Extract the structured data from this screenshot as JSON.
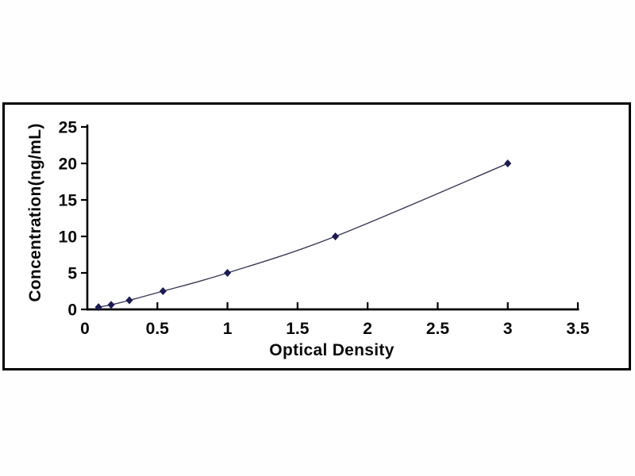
{
  "figure": {
    "background": "#ffffff",
    "panel_background": "#ffffff",
    "panel_border_color": "#000000"
  },
  "chart_data": {
    "type": "line",
    "xlabel": "Optical Density",
    "ylabel": "Concentration(ng/mL)",
    "x": [
      0.08,
      0.17,
      0.3,
      0.54,
      1.0,
      1.77,
      3.0
    ],
    "y": [
      0.31,
      0.63,
      1.25,
      2.5,
      5,
      10,
      20
    ],
    "x_ticks": {
      "values": [
        0,
        0.5,
        1,
        1.5,
        2,
        2.5,
        3,
        3.5
      ],
      "labels": [
        "0",
        "0.5",
        "1",
        "1.5",
        "2",
        "2.5",
        "3",
        "3.5"
      ]
    },
    "y_ticks": {
      "values": [
        0,
        5,
        10,
        15,
        20,
        25
      ],
      "labels": [
        "0",
        "5",
        "10",
        "15",
        "20",
        "25"
      ]
    },
    "xlim": [
      0,
      3.5
    ],
    "ylim": [
      0,
      25
    ],
    "grid": false,
    "legend": false,
    "smooth": true,
    "marker": "diamond",
    "marker_color": "#1a1a57",
    "line_color": "#3a3a55",
    "axis_color": "#000000",
    "tick_label_color": "#0a0a0a"
  }
}
